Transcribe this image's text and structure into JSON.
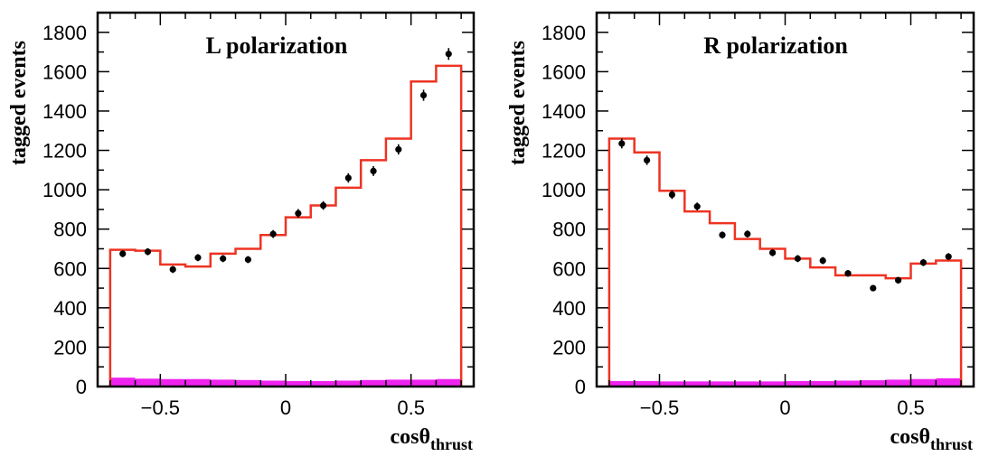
{
  "colors": {
    "model": "#ee3322",
    "background": "#ee22ee",
    "data": "#000000",
    "frame": "#000000"
  },
  "chart_data": [
    {
      "type": "histogram",
      "title": "L polarization",
      "ylabel": "tagged events",
      "xlabel": "cosθ",
      "xlabel_sub": "thrust",
      "xlim": [
        -0.75,
        0.75
      ],
      "ylim": [
        0,
        1900
      ],
      "xticks": [
        -0.5,
        0,
        0.5
      ],
      "xtick_labels": [
        "−0.5",
        "0",
        "0.5"
      ],
      "yticks": [
        0,
        200,
        400,
        600,
        800,
        1000,
        1200,
        1400,
        1600,
        1800
      ],
      "grid": false,
      "series": [
        {
          "kind": "step",
          "bin_edges": [
            -0.7,
            -0.6,
            -0.5,
            -0.4,
            -0.3,
            -0.2,
            -0.1,
            0.0,
            0.1,
            0.2,
            0.3,
            0.4,
            0.5,
            0.6,
            0.7
          ],
          "values": [
            695,
            690,
            620,
            610,
            675,
            700,
            770,
            860,
            920,
            1010,
            1150,
            1260,
            1550,
            1630
          ]
        },
        {
          "kind": "points",
          "x": [
            -0.65,
            -0.55,
            -0.45,
            -0.35,
            -0.25,
            -0.15,
            -0.05,
            0.05,
            0.15,
            0.25,
            0.35,
            0.45,
            0.55,
            0.65
          ],
          "y": [
            675,
            685,
            595,
            655,
            650,
            645,
            775,
            880,
            920,
            1060,
            1095,
            1205,
            1480,
            1690
          ],
          "err": [
            18,
            18,
            18,
            18,
            18,
            18,
            20,
            22,
            22,
            24,
            25,
            26,
            28,
            30
          ]
        },
        {
          "kind": "band",
          "bin_edges": [
            -0.7,
            -0.6,
            -0.5,
            -0.4,
            -0.3,
            -0.2,
            -0.1,
            0.0,
            0.1,
            0.2,
            0.3,
            0.4,
            0.5,
            0.6,
            0.7
          ],
          "values": [
            45,
            40,
            38,
            38,
            35,
            33,
            30,
            28,
            28,
            30,
            33,
            35,
            35,
            38
          ]
        }
      ]
    },
    {
      "type": "histogram",
      "title": "R polarization",
      "ylabel": "tagged events",
      "xlabel": "cosθ",
      "xlabel_sub": "thrust",
      "xlim": [
        -0.75,
        0.75
      ],
      "ylim": [
        0,
        1900
      ],
      "xticks": [
        -0.5,
        0,
        0.5
      ],
      "xtick_labels": [
        "−0.5",
        "0",
        "0.5"
      ],
      "yticks": [
        0,
        200,
        400,
        600,
        800,
        1000,
        1200,
        1400,
        1600,
        1800
      ],
      "grid": false,
      "series": [
        {
          "kind": "step",
          "bin_edges": [
            -0.7,
            -0.6,
            -0.5,
            -0.4,
            -0.3,
            -0.2,
            -0.1,
            0.0,
            0.1,
            0.2,
            0.3,
            0.4,
            0.5,
            0.6,
            0.7
          ],
          "values": [
            1260,
            1190,
            995,
            890,
            830,
            750,
            700,
            650,
            605,
            565,
            565,
            550,
            625,
            640
          ]
        },
        {
          "kind": "points",
          "x": [
            -0.65,
            -0.55,
            -0.45,
            -0.35,
            -0.25,
            -0.15,
            -0.05,
            0.05,
            0.15,
            0.25,
            0.35,
            0.45,
            0.55,
            0.65
          ],
          "y": [
            1235,
            1150,
            975,
            915,
            770,
            775,
            680,
            650,
            640,
            575,
            500,
            540,
            630,
            660
          ],
          "err": [
            25,
            24,
            22,
            20,
            18,
            18,
            18,
            18,
            18,
            17,
            16,
            17,
            18,
            18
          ]
        },
        {
          "kind": "band",
          "bin_edges": [
            -0.7,
            -0.6,
            -0.5,
            -0.4,
            -0.3,
            -0.2,
            -0.1,
            0.0,
            0.1,
            0.2,
            0.3,
            0.4,
            0.5,
            0.6,
            0.7
          ],
          "values": [
            28,
            28,
            26,
            26,
            26,
            26,
            26,
            28,
            28,
            30,
            32,
            35,
            38,
            42
          ]
        }
      ]
    }
  ]
}
